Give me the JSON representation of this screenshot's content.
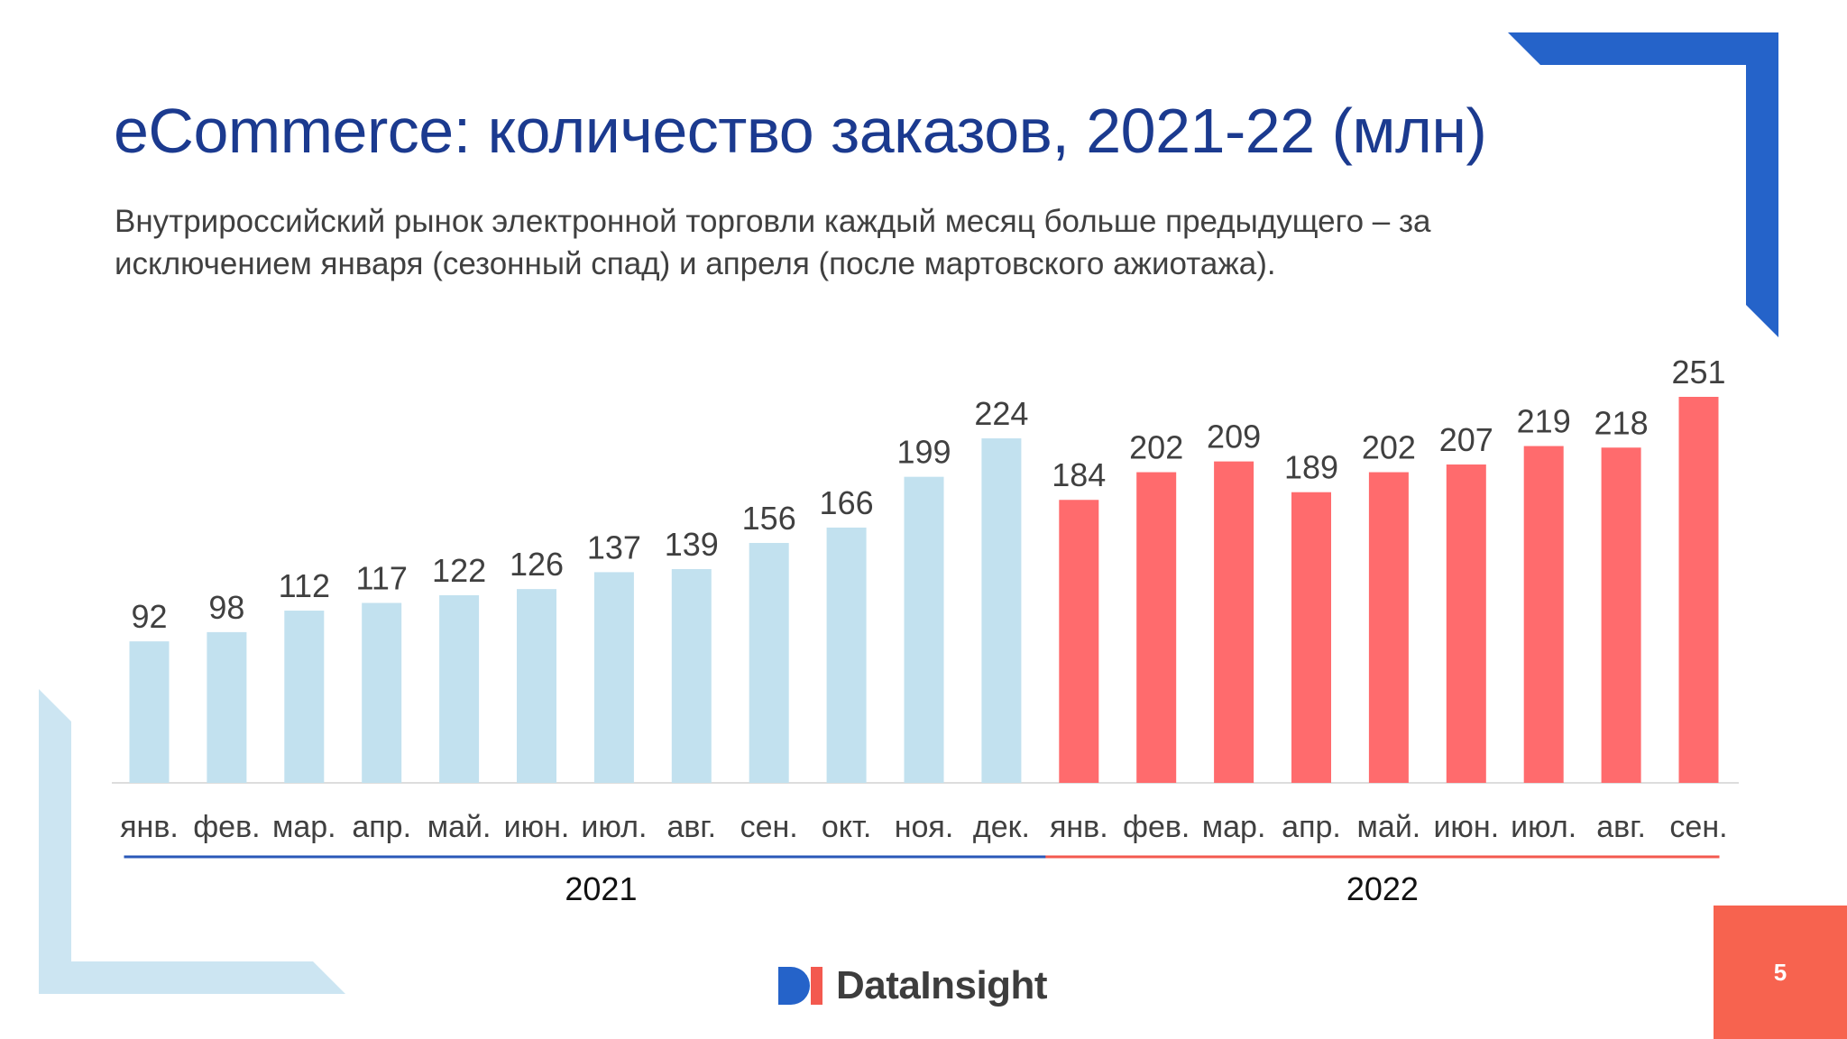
{
  "slide": {
    "title": "eCommerce: количество заказов, 2021-22 (млн)",
    "subtitle": "Внутрироссийский рынок электронной торговли каждый месяц больше предыдущего – за исключением января (сезонный спад) и апреля (после мартовского ажиотажа).",
    "page_number": "5",
    "logo_text": "DataInsight"
  },
  "colors": {
    "bar_2021": "#c2e1ef",
    "bar_2022": "#ff6b6d",
    "line_2021": "#2a58b8",
    "line_2022": "#f3594f",
    "accent_blue": "#2563c9",
    "accent_light": "#cce5f2",
    "title": "#1b3a8f"
  },
  "chart_data": {
    "type": "bar",
    "categories": [
      "янв.",
      "фев.",
      "мар.",
      "апр.",
      "май.",
      "июн.",
      "июл.",
      "авг.",
      "сен.",
      "окт.",
      "ноя.",
      "дек.",
      "янв.",
      "фев.",
      "мар.",
      "апр.",
      "май.",
      "июн.",
      "июл.",
      "авг.",
      "сен."
    ],
    "values": [
      92,
      98,
      112,
      117,
      122,
      126,
      137,
      139,
      156,
      166,
      199,
      224,
      184,
      202,
      209,
      189,
      202,
      207,
      219,
      218,
      251
    ],
    "groups": [
      {
        "label": "2021",
        "count": 12
      },
      {
        "label": "2022",
        "count": 9
      }
    ],
    "ylim": [
      0,
      251
    ],
    "grid": false,
    "data_labels": true
  }
}
